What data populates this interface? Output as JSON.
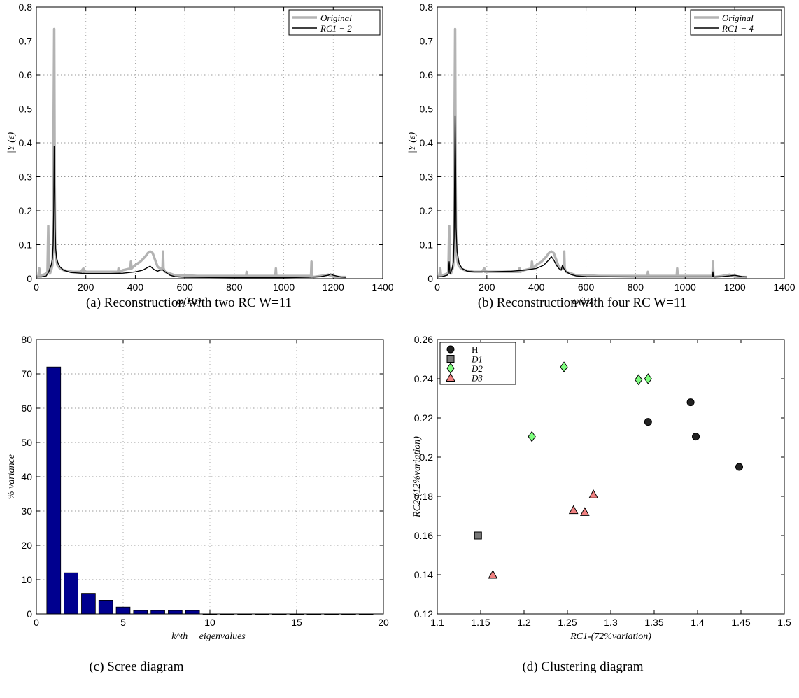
{
  "chart_data": [
    {
      "type": "line",
      "caption": "(a) Reconstruction with two RC W=11",
      "xlabel": "ω(Hz)",
      "ylabel": "|Y|(ε)",
      "xlim": [
        0,
        1400
      ],
      "ylim": [
        0,
        0.8
      ],
      "xticks": [
        0,
        200,
        400,
        600,
        800,
        1000,
        1200,
        1400
      ],
      "yticks": [
        0,
        0.1,
        0.2,
        0.3,
        0.4,
        0.5,
        0.6,
        0.7,
        0.8
      ],
      "grid": true,
      "legend_position": "top-right",
      "series": [
        {
          "name": "Original",
          "color": "#b3b3b3",
          "x": [
            0,
            8,
            12,
            15,
            20,
            30,
            40,
            45,
            48,
            51,
            55,
            60,
            65,
            68,
            70,
            72,
            74,
            76,
            80,
            85,
            95,
            110,
            130,
            150,
            180,
            190,
            192,
            195,
            200,
            250,
            300,
            330,
            332,
            335,
            350,
            380,
            382,
            385,
            400,
            420,
            440,
            450,
            460,
            470,
            480,
            490,
            500,
            510,
            512,
            514,
            520,
            540,
            560,
            600,
            650,
            700,
            800,
            848,
            850,
            852,
            900,
            966,
            968,
            970,
            1000,
            1050,
            1110,
            1112,
            1114,
            1120,
            1150,
            1180,
            1200,
            1230,
            1250
          ],
          "values": [
            0.005,
            0.008,
            0.03,
            0.008,
            0.01,
            0.012,
            0.015,
            0.02,
            0.155,
            0.02,
            0.015,
            0.025,
            0.04,
            0.12,
            0.5,
            0.735,
            0.3,
            0.08,
            0.06,
            0.04,
            0.03,
            0.025,
            0.022,
            0.02,
            0.02,
            0.03,
            0.02,
            0.02,
            0.02,
            0.02,
            0.02,
            0.02,
            0.03,
            0.02,
            0.025,
            0.03,
            0.05,
            0.03,
            0.04,
            0.05,
            0.065,
            0.075,
            0.08,
            0.075,
            0.055,
            0.035,
            0.03,
            0.03,
            0.08,
            0.03,
            0.02,
            0.015,
            0.01,
            0.01,
            0.008,
            0.008,
            0.008,
            0.008,
            0.02,
            0.008,
            0.008,
            0.008,
            0.03,
            0.008,
            0.008,
            0.008,
            0.008,
            0.05,
            0.008,
            0.005,
            0.008,
            0.012,
            0.006,
            0.005,
            0.005
          ]
        },
        {
          "name": "RC1 − 2",
          "color": "#000000",
          "x": [
            0,
            20,
            40,
            50,
            55,
            60,
            65,
            68,
            70,
            72,
            74,
            76,
            78,
            82,
            88,
            95,
            110,
            140,
            200,
            300,
            350,
            400,
            430,
            450,
            460,
            470,
            480,
            490,
            500,
            510,
            520,
            540,
            560,
            600,
            800,
            1000,
            1100,
            1150,
            1180,
            1190,
            1200,
            1230,
            1250
          ],
          "values": [
            0.005,
            0.005,
            0.008,
            0.02,
            0.03,
            0.04,
            0.06,
            0.1,
            0.2,
            0.39,
            0.3,
            0.15,
            0.09,
            0.06,
            0.045,
            0.035,
            0.025,
            0.018,
            0.015,
            0.015,
            0.016,
            0.02,
            0.025,
            0.033,
            0.037,
            0.03,
            0.025,
            0.022,
            0.025,
            0.026,
            0.02,
            0.01,
            0.006,
            0.004,
            0.003,
            0.003,
            0.004,
            0.006,
            0.01,
            0.014,
            0.01,
            0.005,
            0.004
          ]
        }
      ]
    },
    {
      "type": "line",
      "caption": "(b) Reconstruction with four RC W=11",
      "xlabel": "ω(Hz)",
      "ylabel": "|Y|(ε)",
      "xlim": [
        0,
        1400
      ],
      "ylim": [
        0,
        0.8
      ],
      "xticks": [
        0,
        200,
        400,
        600,
        800,
        1000,
        1200,
        1400
      ],
      "yticks": [
        0,
        0.1,
        0.2,
        0.3,
        0.4,
        0.5,
        0.6,
        0.7,
        0.8
      ],
      "grid": true,
      "legend_position": "top-right",
      "series": [
        {
          "name": "Original",
          "color": "#b3b3b3",
          "x": [
            0,
            8,
            12,
            15,
            20,
            30,
            40,
            45,
            48,
            51,
            55,
            60,
            65,
            68,
            70,
            72,
            74,
            76,
            80,
            85,
            95,
            110,
            130,
            150,
            180,
            190,
            192,
            195,
            200,
            250,
            300,
            330,
            332,
            335,
            350,
            380,
            382,
            385,
            400,
            420,
            440,
            450,
            460,
            470,
            480,
            490,
            500,
            510,
            512,
            514,
            520,
            540,
            560,
            600,
            650,
            700,
            800,
            848,
            850,
            852,
            900,
            966,
            968,
            970,
            1000,
            1050,
            1110,
            1112,
            1114,
            1120,
            1150,
            1180,
            1200,
            1230,
            1250
          ],
          "values": [
            0.005,
            0.008,
            0.03,
            0.008,
            0.01,
            0.012,
            0.015,
            0.02,
            0.155,
            0.02,
            0.015,
            0.025,
            0.04,
            0.12,
            0.5,
            0.735,
            0.3,
            0.08,
            0.06,
            0.04,
            0.03,
            0.025,
            0.022,
            0.02,
            0.02,
            0.03,
            0.02,
            0.02,
            0.02,
            0.02,
            0.02,
            0.02,
            0.03,
            0.02,
            0.025,
            0.03,
            0.05,
            0.03,
            0.04,
            0.05,
            0.065,
            0.075,
            0.08,
            0.075,
            0.055,
            0.035,
            0.03,
            0.03,
            0.08,
            0.03,
            0.02,
            0.015,
            0.01,
            0.01,
            0.008,
            0.008,
            0.008,
            0.008,
            0.02,
            0.008,
            0.008,
            0.008,
            0.03,
            0.008,
            0.008,
            0.008,
            0.008,
            0.05,
            0.008,
            0.005,
            0.008,
            0.012,
            0.006,
            0.005,
            0.005
          ]
        },
        {
          "name": "RC1 − 4",
          "color": "#000000",
          "x": [
            0,
            20,
            40,
            45,
            48,
            51,
            55,
            60,
            65,
            68,
            70,
            72,
            74,
            76,
            80,
            88,
            100,
            120,
            150,
            200,
            300,
            350,
            400,
            430,
            450,
            460,
            470,
            480,
            490,
            500,
            505,
            510,
            515,
            520,
            540,
            560,
            600,
            800,
            1000,
            1100,
            1110,
            1112,
            1114,
            1150,
            1180,
            1200,
            1230,
            1250
          ],
          "values": [
            0.005,
            0.006,
            0.01,
            0.015,
            0.05,
            0.015,
            0.02,
            0.03,
            0.05,
            0.12,
            0.3,
            0.48,
            0.35,
            0.15,
            0.08,
            0.045,
            0.03,
            0.022,
            0.02,
            0.02,
            0.022,
            0.025,
            0.03,
            0.04,
            0.055,
            0.065,
            0.055,
            0.04,
            0.03,
            0.025,
            0.04,
            0.03,
            0.025,
            0.02,
            0.012,
            0.008,
            0.006,
            0.005,
            0.005,
            0.005,
            0.005,
            0.02,
            0.005,
            0.006,
            0.008,
            0.01,
            0.006,
            0.005
          ]
        }
      ]
    },
    {
      "type": "bar",
      "caption": "(c) Scree diagram",
      "xlabel": "k^th − eigenvalues",
      "ylabel": "% variance",
      "xlim": [
        0,
        20
      ],
      "ylim": [
        0,
        80
      ],
      "xticks": [
        0,
        5,
        10,
        15,
        20
      ],
      "yticks": [
        0,
        10,
        20,
        30,
        40,
        50,
        60,
        70,
        80
      ],
      "grid": true,
      "color": "#00008f",
      "categories": [
        1,
        2,
        3,
        4,
        5,
        6,
        7,
        8,
        9,
        10,
        11,
        12,
        13,
        14,
        15,
        16,
        17,
        18,
        19
      ],
      "values": [
        72,
        12,
        6,
        4,
        2,
        1,
        1,
        1,
        1,
        0,
        0,
        0,
        0,
        0,
        0,
        0,
        0,
        0,
        0
      ]
    },
    {
      "type": "scatter",
      "caption": "(d) Clustering diagram",
      "xlabel": "RC1-(72%variation)",
      "ylabel": "RC2-(12%variation)",
      "xlim": [
        1.1,
        1.5
      ],
      "ylim": [
        0.12,
        0.26
      ],
      "xticks": [
        1.1,
        1.15,
        1.2,
        1.25,
        1.3,
        1.35,
        1.4,
        1.45,
        1.5
      ],
      "yticks": [
        0.12,
        0.14,
        0.16,
        0.18,
        0.2,
        0.22,
        0.24,
        0.26
      ],
      "grid": false,
      "legend_position": "top-left",
      "series": [
        {
          "name": "H",
          "marker": "circle",
          "color": "#222222",
          "points": [
            [
              1.343,
              0.218
            ],
            [
              1.392,
              0.228
            ],
            [
              1.398,
              0.2105
            ],
            [
              1.448,
              0.195
            ]
          ]
        },
        {
          "name": "D1",
          "marker": "square",
          "color": "#777777",
          "points": [
            [
              1.147,
              0.16
            ]
          ]
        },
        {
          "name": "D2",
          "marker": "diamond",
          "color": "#7fff7f",
          "points": [
            [
              1.209,
              0.2105
            ],
            [
              1.246,
              0.246
            ],
            [
              1.332,
              0.2395
            ],
            [
              1.343,
              0.24
            ]
          ]
        },
        {
          "name": "D3",
          "marker": "triangle",
          "color": "#f08080",
          "points": [
            [
              1.164,
              0.14
            ],
            [
              1.257,
              0.173
            ],
            [
              1.27,
              0.172
            ],
            [
              1.28,
              0.181
            ]
          ]
        }
      ]
    }
  ]
}
